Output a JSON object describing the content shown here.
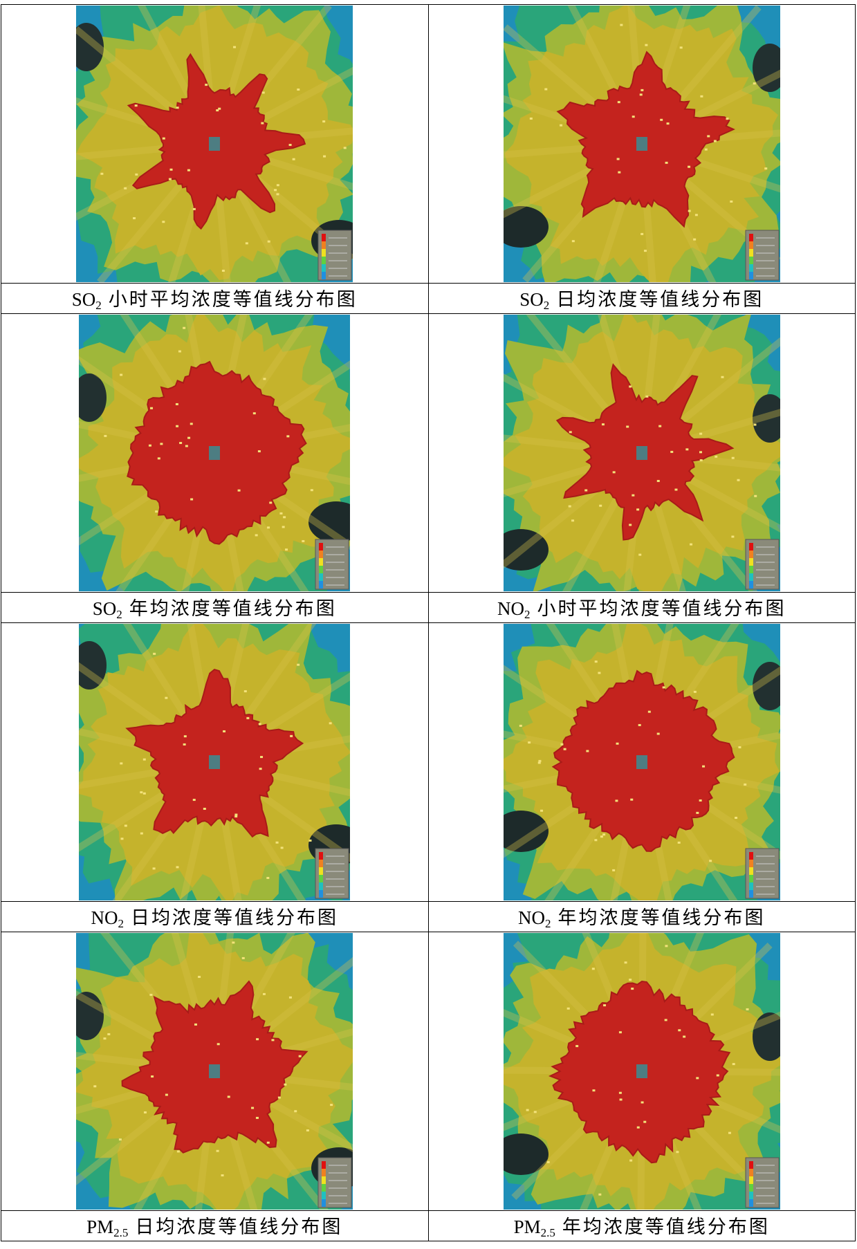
{
  "figures": [
    {
      "caption": {
        "pollutant": "SO",
        "subscript": "2",
        "text": "小时平均浓度等值线分布图"
      }
    },
    {
      "caption": {
        "pollutant": "SO",
        "subscript": "2",
        "text": "日均浓度等值线分布图"
      }
    },
    {
      "caption": {
        "pollutant": "SO",
        "subscript": "2",
        "text": "年均浓度等值线分布图"
      }
    },
    {
      "caption": {
        "pollutant": "NO",
        "subscript": "2",
        "text": "小时平均浓度等值线分布图"
      }
    },
    {
      "caption": {
        "pollutant": "NO",
        "subscript": "2",
        "text": "日均浓度等值线分布图"
      }
    },
    {
      "caption": {
        "pollutant": "NO",
        "subscript": "2",
        "text": "年均浓度等值线分布图"
      }
    },
    {
      "caption": {
        "pollutant": "PM",
        "subscript": "2.5",
        "text": "日均浓度等值线分布图"
      }
    },
    {
      "caption": {
        "pollutant": "PM",
        "subscript": "2.5",
        "text": "年均浓度等值线分布图"
      }
    }
  ]
}
